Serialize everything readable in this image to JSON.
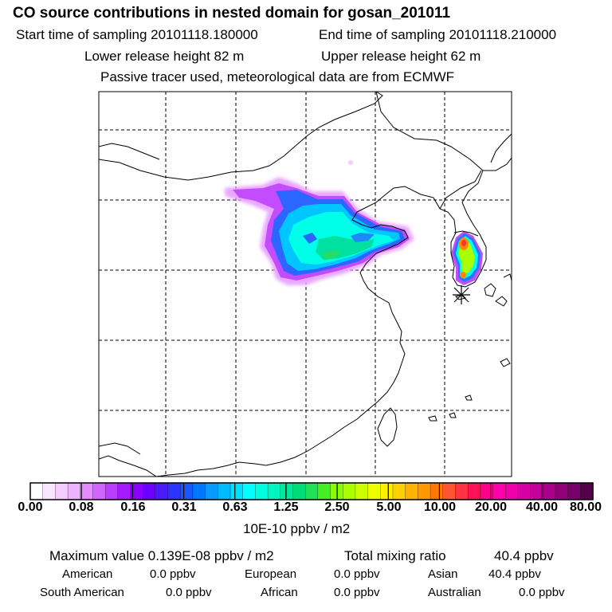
{
  "header": {
    "title": "CO  source contributions in nested domain for gosan_201011",
    "start_label": "Start time of sampling 20101118.180000",
    "end_label": "End time of sampling 20101118.210000",
    "lower_label": "Lower release height   82 m",
    "upper_label": "Upper release height   62 m",
    "tracer_note": "Passive tracer used, meteorological data are from ECMWF"
  },
  "colorbar": {
    "tick_labels": [
      "0.00",
      "0.08",
      "0.16",
      "0.31",
      "0.63",
      "1.25",
      "2.50",
      "5.00",
      "10.00",
      "20.00",
      "40.00",
      "80.00"
    ],
    "unit_label": "10E-10 ppbv / m2",
    "colors": [
      "#ffffff",
      "#fbe6ff",
      "#f4ccff",
      "#eeb3ff",
      "#e28cff",
      "#d066ff",
      "#bb3dff",
      "#a61aff",
      "#8a00ff",
      "#6b00ff",
      "#4a1aff",
      "#2a33ff",
      "#1a55ff",
      "#0077ff",
      "#0a99ff",
      "#00bbff",
      "#00e0ff",
      "#00ffff",
      "#00ffe0",
      "#00f5c0",
      "#00e89a",
      "#00dd77",
      "#22e055",
      "#44ee22",
      "#88ff00",
      "#aaff00",
      "#ccff00",
      "#eeff00",
      "#ffee00",
      "#ffd000",
      "#ffb300",
      "#ff9900",
      "#ff7700",
      "#ff5533",
      "#ff3344",
      "#ff1155",
      "#ff0088",
      "#ff00aa",
      "#ee00aa",
      "#d600a5",
      "#c00098",
      "#a8008a",
      "#90007a",
      "#77006a",
      "#55004a"
    ]
  },
  "stats": {
    "max_label": "Maximum value  0.139E-08 ppbv / m2",
    "total_label": "Total mixing ratio",
    "total_value": "40.4 ppbv",
    "american_label": "American",
    "american_value": "0.0 ppbv",
    "european_label": "European",
    "european_value": "0.0 ppbv",
    "asian_label": "Asian",
    "asian_value": "40.4 ppbv",
    "south_american_label": "South American",
    "south_american_value": "0.0 ppbv",
    "african_label": "African",
    "african_value": "0.0 ppbv",
    "australian_label": "Australian",
    "australian_value": "0.0 ppbv"
  },
  "map": {
    "receptor_marker": "asterisk-icon"
  }
}
